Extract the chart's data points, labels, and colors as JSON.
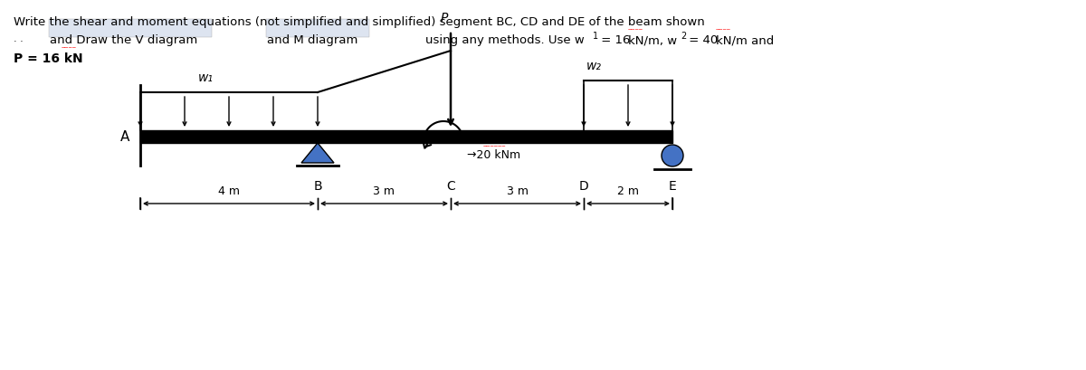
{
  "title_line1": "Write the shear and moment equations (not simplified and simplified) segment BC, CD and DE of the beam shown",
  "title_line2_part1": "   . .   and Draw the V diagram",
  "title_line2_part2": "and M diagram",
  "title_line2_part3": "using any methods. Use w₁ = 16 kN/m, w₂ = 40 kN/m and",
  "title_line3": "P = 16 kN",
  "bg_color": "#ffffff",
  "beam_color": "#000000",
  "support_pin_color": "#4472c4",
  "support_roller_color": "#4472c4",
  "moment_label": "→20 kNm",
  "moment_wavy_color": "#cc0000",
  "label_A": "A",
  "label_B": "B",
  "label_C": "C",
  "label_D": "D",
  "label_E": "E",
  "label_P": "P",
  "label_w1": "w₁",
  "label_w2": "w₂",
  "dim_AB": "4 m",
  "dim_BC": "3 m",
  "dim_CD": "3 m",
  "dim_DE": "2 m",
  "highlight_color": "#dde4f0",
  "w1_16": "16",
  "w2_40": "40",
  "p_val": "16"
}
